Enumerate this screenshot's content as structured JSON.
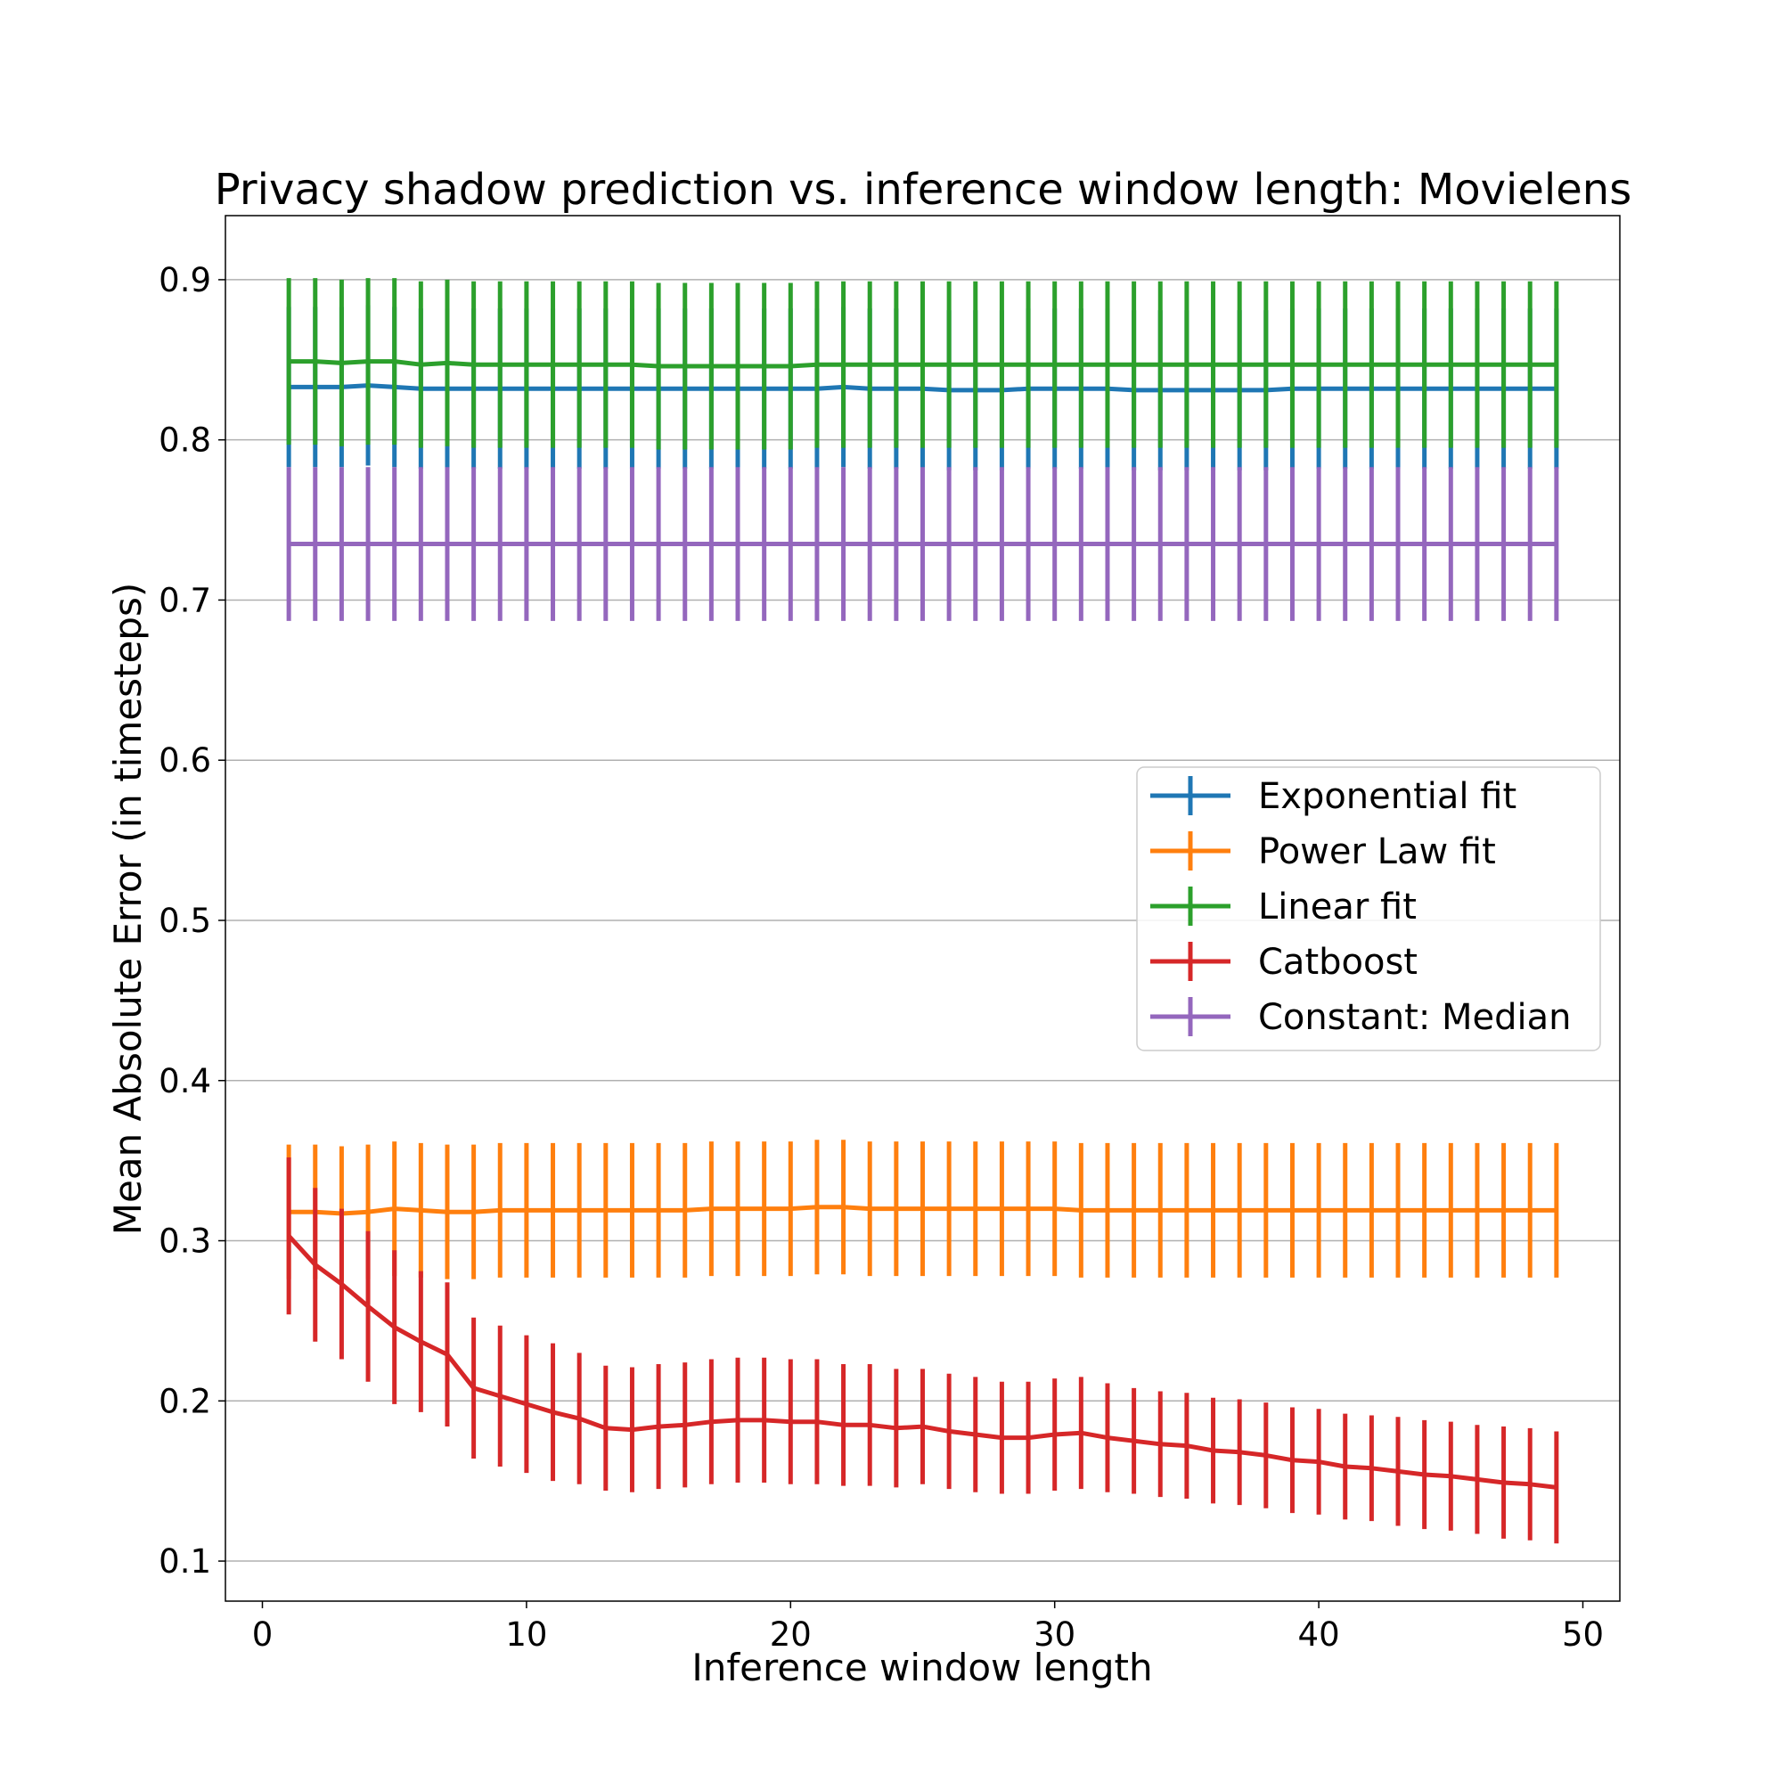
{
  "chart_data": {
    "type": "line",
    "title": "Privacy shadow prediction vs. inference window length: Movielens",
    "xlabel": "Inference window length",
    "ylabel": "Mean Absolute Error (in timesteps)",
    "xlim": [
      -1.4,
      51.4
    ],
    "ylim": [
      0.075,
      0.94
    ],
    "x_ticks": [
      0,
      10,
      20,
      30,
      40,
      50
    ],
    "y_ticks": [
      0.1,
      0.2,
      0.3,
      0.4,
      0.5,
      0.6,
      0.7,
      0.8,
      0.9
    ],
    "grid": "horizontal",
    "legend_position": "center-right",
    "x": [
      1,
      2,
      3,
      4,
      5,
      6,
      7,
      8,
      9,
      10,
      11,
      12,
      13,
      14,
      15,
      16,
      17,
      18,
      19,
      20,
      21,
      22,
      23,
      24,
      25,
      26,
      27,
      28,
      29,
      30,
      31,
      32,
      33,
      34,
      35,
      36,
      37,
      38,
      39,
      40,
      41,
      42,
      43,
      44,
      45,
      46,
      47,
      48,
      49
    ],
    "series": [
      {
        "name": "Exponential fit",
        "color": "#1f77b4",
        "values": [
          0.833,
          0.833,
          0.833,
          0.834,
          0.833,
          0.832,
          0.832,
          0.832,
          0.832,
          0.832,
          0.832,
          0.832,
          0.832,
          0.832,
          0.832,
          0.832,
          0.832,
          0.832,
          0.832,
          0.832,
          0.832,
          0.833,
          0.832,
          0.832,
          0.832,
          0.831,
          0.831,
          0.831,
          0.832,
          0.832,
          0.832,
          0.832,
          0.831,
          0.831,
          0.831,
          0.831,
          0.831,
          0.831,
          0.832,
          0.832,
          0.832,
          0.832,
          0.832,
          0.832,
          0.832,
          0.832,
          0.832,
          0.832,
          0.832
        ],
        "errors": [
          0.05,
          0.05,
          0.05,
          0.05,
          0.05,
          0.05,
          0.05,
          0.05,
          0.05,
          0.05,
          0.05,
          0.05,
          0.05,
          0.05,
          0.05,
          0.05,
          0.05,
          0.05,
          0.05,
          0.05,
          0.05,
          0.05,
          0.05,
          0.05,
          0.05,
          0.05,
          0.05,
          0.05,
          0.05,
          0.05,
          0.05,
          0.05,
          0.05,
          0.05,
          0.05,
          0.05,
          0.05,
          0.05,
          0.05,
          0.05,
          0.05,
          0.05,
          0.05,
          0.05,
          0.05,
          0.05,
          0.05,
          0.05,
          0.05
        ]
      },
      {
        "name": "Power Law fit",
        "color": "#ff7f0e",
        "values": [
          0.318,
          0.318,
          0.317,
          0.318,
          0.32,
          0.319,
          0.318,
          0.318,
          0.319,
          0.319,
          0.319,
          0.319,
          0.319,
          0.319,
          0.319,
          0.319,
          0.32,
          0.32,
          0.32,
          0.32,
          0.321,
          0.321,
          0.32,
          0.32,
          0.32,
          0.32,
          0.32,
          0.32,
          0.32,
          0.32,
          0.319,
          0.319,
          0.319,
          0.319,
          0.319,
          0.319,
          0.319,
          0.319,
          0.319,
          0.319,
          0.319,
          0.319,
          0.319,
          0.319,
          0.319,
          0.319,
          0.319,
          0.319,
          0.319
        ],
        "errors": [
          0.042,
          0.042,
          0.042,
          0.042,
          0.042,
          0.042,
          0.042,
          0.042,
          0.042,
          0.042,
          0.042,
          0.042,
          0.042,
          0.042,
          0.042,
          0.042,
          0.042,
          0.042,
          0.042,
          0.042,
          0.042,
          0.042,
          0.042,
          0.042,
          0.042,
          0.042,
          0.042,
          0.042,
          0.042,
          0.042,
          0.042,
          0.042,
          0.042,
          0.042,
          0.042,
          0.042,
          0.042,
          0.042,
          0.042,
          0.042,
          0.042,
          0.042,
          0.042,
          0.042,
          0.042,
          0.042,
          0.042,
          0.042,
          0.042
        ]
      },
      {
        "name": "Linear fit",
        "color": "#2ca02c",
        "values": [
          0.849,
          0.849,
          0.848,
          0.849,
          0.849,
          0.847,
          0.848,
          0.847,
          0.847,
          0.847,
          0.847,
          0.847,
          0.847,
          0.847,
          0.846,
          0.846,
          0.846,
          0.846,
          0.846,
          0.846,
          0.847,
          0.847,
          0.847,
          0.847,
          0.847,
          0.847,
          0.847,
          0.847,
          0.847,
          0.847,
          0.847,
          0.847,
          0.847,
          0.847,
          0.847,
          0.847,
          0.847,
          0.847,
          0.847,
          0.847,
          0.847,
          0.847,
          0.847,
          0.847,
          0.847,
          0.847,
          0.847,
          0.847,
          0.847
        ],
        "errors": [
          0.052,
          0.052,
          0.052,
          0.052,
          0.052,
          0.052,
          0.052,
          0.052,
          0.052,
          0.052,
          0.052,
          0.052,
          0.052,
          0.052,
          0.052,
          0.052,
          0.052,
          0.052,
          0.052,
          0.052,
          0.052,
          0.052,
          0.052,
          0.052,
          0.052,
          0.052,
          0.052,
          0.052,
          0.052,
          0.052,
          0.052,
          0.052,
          0.052,
          0.052,
          0.052,
          0.052,
          0.052,
          0.052,
          0.052,
          0.052,
          0.052,
          0.052,
          0.052,
          0.052,
          0.052,
          0.052,
          0.052,
          0.052,
          0.052
        ]
      },
      {
        "name": "Catboost",
        "color": "#d62728",
        "values": [
          0.303,
          0.285,
          0.273,
          0.259,
          0.246,
          0.237,
          0.229,
          0.208,
          0.203,
          0.198,
          0.193,
          0.189,
          0.183,
          0.182,
          0.184,
          0.185,
          0.187,
          0.188,
          0.188,
          0.187,
          0.187,
          0.185,
          0.185,
          0.183,
          0.184,
          0.181,
          0.179,
          0.177,
          0.177,
          0.179,
          0.18,
          0.177,
          0.175,
          0.173,
          0.172,
          0.169,
          0.168,
          0.166,
          0.163,
          0.162,
          0.159,
          0.158,
          0.156,
          0.154,
          0.153,
          0.151,
          0.149,
          0.148,
          0.146
        ],
        "errors": [
          0.049,
          0.048,
          0.047,
          0.047,
          0.048,
          0.044,
          0.045,
          0.044,
          0.044,
          0.043,
          0.043,
          0.041,
          0.039,
          0.039,
          0.039,
          0.039,
          0.039,
          0.039,
          0.039,
          0.039,
          0.039,
          0.038,
          0.038,
          0.037,
          0.036,
          0.036,
          0.036,
          0.035,
          0.035,
          0.035,
          0.035,
          0.034,
          0.033,
          0.033,
          0.033,
          0.033,
          0.033,
          0.033,
          0.033,
          0.033,
          0.033,
          0.033,
          0.034,
          0.034,
          0.034,
          0.034,
          0.035,
          0.035,
          0.035
        ]
      },
      {
        "name": "Constant: Median",
        "color": "#9467bd",
        "values": [
          0.735,
          0.735,
          0.735,
          0.735,
          0.735,
          0.735,
          0.735,
          0.735,
          0.735,
          0.735,
          0.735,
          0.735,
          0.735,
          0.735,
          0.735,
          0.735,
          0.735,
          0.735,
          0.735,
          0.735,
          0.735,
          0.735,
          0.735,
          0.735,
          0.735,
          0.735,
          0.735,
          0.735,
          0.735,
          0.735,
          0.735,
          0.735,
          0.735,
          0.735,
          0.735,
          0.735,
          0.735,
          0.735,
          0.735,
          0.735,
          0.735,
          0.735,
          0.735,
          0.735,
          0.735,
          0.735,
          0.735,
          0.735,
          0.735
        ],
        "errors": [
          0.048,
          0.048,
          0.048,
          0.048,
          0.048,
          0.048,
          0.048,
          0.048,
          0.048,
          0.048,
          0.048,
          0.048,
          0.048,
          0.048,
          0.048,
          0.048,
          0.048,
          0.048,
          0.048,
          0.048,
          0.048,
          0.048,
          0.048,
          0.048,
          0.048,
          0.048,
          0.048,
          0.048,
          0.048,
          0.048,
          0.048,
          0.048,
          0.048,
          0.048,
          0.048,
          0.048,
          0.048,
          0.048,
          0.048,
          0.048,
          0.048,
          0.048,
          0.048,
          0.048,
          0.048,
          0.048,
          0.048,
          0.048,
          0.048
        ]
      }
    ]
  }
}
